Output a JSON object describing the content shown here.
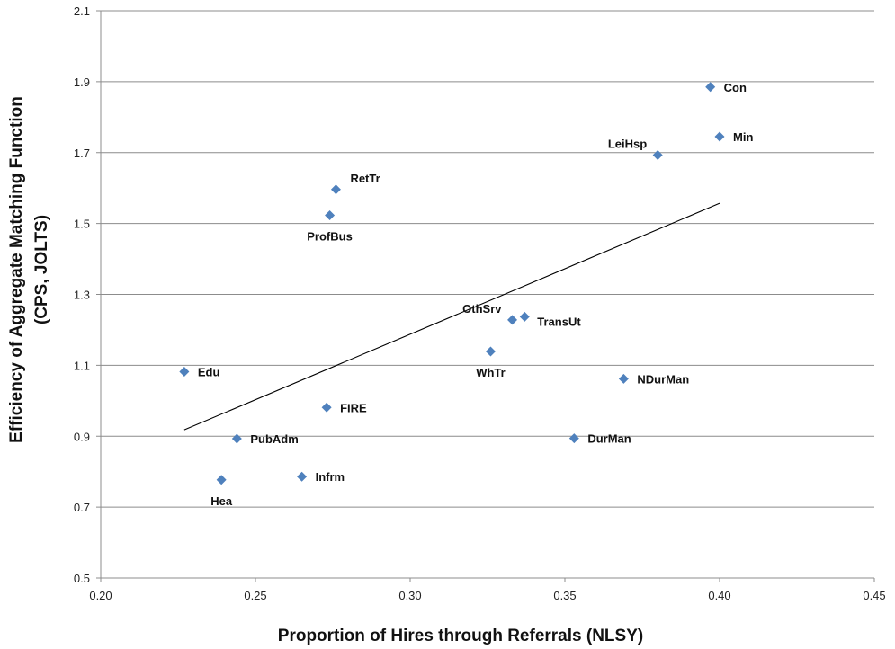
{
  "chart_data": {
    "type": "scatter",
    "title": "",
    "xlabel": "Proportion of Hires through Referrals (NLSY)",
    "ylabel_line1": "Efficiency of Aggregate Matching Function",
    "ylabel_line2": "(CPS, JOLTS)",
    "xlim": [
      0.2,
      0.45
    ],
    "ylim": [
      0.5,
      2.1
    ],
    "x_ticks": [
      0.2,
      0.25,
      0.3,
      0.35,
      0.4,
      0.45
    ],
    "x_tick_labels": [
      "0.20",
      "0.25",
      "0.30",
      "0.35",
      "0.40",
      "0.45"
    ],
    "y_ticks": [
      0.5,
      0.7,
      0.9,
      1.1,
      1.3,
      1.5,
      1.7,
      1.9,
      2.1
    ],
    "y_tick_labels": [
      "0.5",
      "0.7",
      "0.9",
      "1.1",
      "1.3",
      "1.5",
      "1.7",
      "1.9",
      "2.1"
    ],
    "grid": "horizontal",
    "marker_color": "#4F81BD",
    "points": [
      {
        "label": "Con",
        "x": 0.397,
        "y": 1.885,
        "label_pos": "right"
      },
      {
        "label": "Min",
        "x": 0.4,
        "y": 1.745,
        "label_pos": "right"
      },
      {
        "label": "LeiHsp",
        "x": 0.38,
        "y": 1.693,
        "label_pos": "above-left"
      },
      {
        "label": "RetTr",
        "x": 0.276,
        "y": 1.596,
        "label_pos": "above-right"
      },
      {
        "label": "ProfBus",
        "x": 0.274,
        "y": 1.523,
        "label_pos": "below"
      },
      {
        "label": "OthSrv",
        "x": 0.333,
        "y": 1.228,
        "label_pos": "above-left"
      },
      {
        "label": "TransUt",
        "x": 0.337,
        "y": 1.237,
        "label_pos": "below-right"
      },
      {
        "label": "WhTr",
        "x": 0.326,
        "y": 1.139,
        "label_pos": "below"
      },
      {
        "label": "NDurMan",
        "x": 0.369,
        "y": 1.062,
        "label_pos": "right"
      },
      {
        "label": "Edu",
        "x": 0.227,
        "y": 1.082,
        "label_pos": "right"
      },
      {
        "label": "FIRE",
        "x": 0.273,
        "y": 0.981,
        "label_pos": "right"
      },
      {
        "label": "PubAdm",
        "x": 0.244,
        "y": 0.893,
        "label_pos": "right"
      },
      {
        "label": "DurMan",
        "x": 0.353,
        "y": 0.894,
        "label_pos": "right"
      },
      {
        "label": "Infrm",
        "x": 0.265,
        "y": 0.786,
        "label_pos": "right"
      },
      {
        "label": "Hea",
        "x": 0.239,
        "y": 0.777,
        "label_pos": "below"
      }
    ],
    "trendline": {
      "x": [
        0.227,
        0.4
      ],
      "y": [
        0.918,
        1.557
      ]
    }
  }
}
